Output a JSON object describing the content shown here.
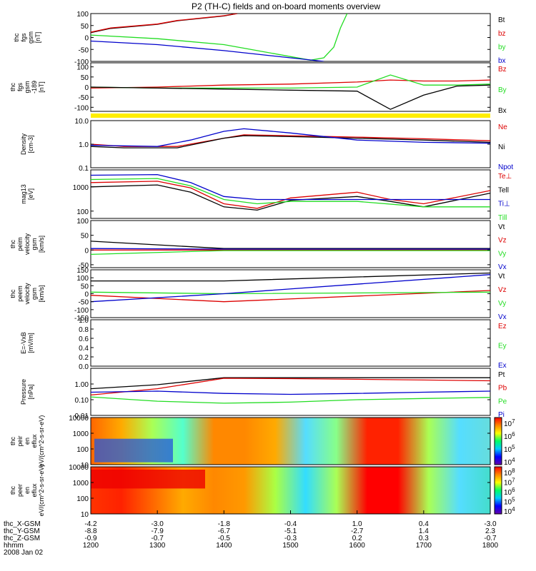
{
  "title": "P2 (TH-C) fields and on-board moments overview",
  "colors": {
    "black": "#000000",
    "red": "#dd0000",
    "green": "#22dd22",
    "blue": "#0000cc",
    "yellow": "#ffee00"
  },
  "chart_data": [
    {
      "type": "line",
      "ylabel": "thc fgs gsm [nT]",
      "ylim": [
        -100,
        100
      ],
      "yticks": [
        "100",
        "50",
        "0",
        "-50",
        "-100"
      ],
      "series": [
        {
          "name": "Bt",
          "color": "#000000",
          "x": [
            1200,
            1230,
            1300,
            1330,
            1400,
            1420
          ],
          "y": [
            20,
            38,
            55,
            70,
            90,
            100
          ]
        },
        {
          "name": "bz",
          "color": "#dd0000",
          "x": [
            1200,
            1230,
            1300,
            1330,
            1400,
            1420
          ],
          "y": [
            22,
            40,
            56,
            71,
            91,
            100
          ]
        },
        {
          "name": "by",
          "color": "#22dd22",
          "x": [
            1200,
            1300,
            1400,
            1450,
            1530,
            1550,
            1565,
            1575,
            1585
          ],
          "y": [
            10,
            -5,
            -30,
            -55,
            -95,
            -85,
            -40,
            40,
            100
          ]
        },
        {
          "name": "bx",
          "color": "#0000cc",
          "x": [
            1200,
            1300,
            1400,
            1500,
            1550
          ],
          "y": [
            -15,
            -30,
            -55,
            -85,
            -100
          ]
        }
      ]
    },
    {
      "type": "line",
      "ylabel": "thc fgs gsm -189 [nT]",
      "ylim": [
        -120,
        120
      ],
      "yticks": [
        "100",
        "50",
        "0",
        "-50",
        "-100"
      ],
      "series": [
        {
          "name": "Bz",
          "color": "#dd0000",
          "x": [
            1200,
            1300,
            1400,
            1500,
            1600,
            1650,
            1700,
            1750,
            1800
          ],
          "y": [
            -5,
            0,
            10,
            15,
            25,
            35,
            30,
            30,
            35
          ]
        },
        {
          "name": "By",
          "color": "#22dd22",
          "x": [
            1200,
            1300,
            1400,
            1500,
            1600,
            1650,
            1700,
            1750,
            1800
          ],
          "y": [
            0,
            -5,
            -5,
            -5,
            0,
            60,
            10,
            10,
            15
          ]
        },
        {
          "name": "Bx",
          "color": "#000000",
          "x": [
            1200,
            1300,
            1400,
            1500,
            1600,
            1650,
            1700,
            1750,
            1800
          ],
          "y": [
            0,
            -5,
            -10,
            -15,
            -20,
            -110,
            -40,
            5,
            10
          ]
        }
      ]
    },
    {
      "type": "line",
      "ylabel": "Density [cm-3]",
      "yscale": "log",
      "ylim": [
        0.1,
        10
      ],
      "yticks": [
        "10.0",
        "1.0",
        "0.1"
      ],
      "series": [
        {
          "name": "Ne",
          "color": "#dd0000",
          "x": [
            1200,
            1250,
            1330,
            1400,
            1430,
            1500,
            1600,
            1700,
            1800
          ],
          "y": [
            1.0,
            0.8,
            0.8,
            1.8,
            2.5,
            2.3,
            2.0,
            1.7,
            1.4
          ]
        },
        {
          "name": "Ni",
          "color": "#000000",
          "x": [
            1200,
            1250,
            1330,
            1400,
            1430,
            1500,
            1600,
            1700,
            1800
          ],
          "y": [
            0.8,
            0.7,
            0.7,
            1.8,
            2.3,
            2.1,
            1.8,
            1.5,
            1.2
          ]
        },
        {
          "name": "Npot",
          "color": "#0000cc",
          "x": [
            1200,
            1300,
            1350,
            1400,
            1430,
            1500,
            1600,
            1700,
            1800
          ],
          "y": [
            0.9,
            0.8,
            1.5,
            3.5,
            4.5,
            3.0,
            1.5,
            1.2,
            1.1
          ]
        }
      ]
    },
    {
      "type": "line",
      "ylabel": "mag13 [eV]",
      "yscale": "log",
      "ylim": [
        50,
        5000
      ],
      "yticks": [
        "1000",
        "100"
      ],
      "series": [
        {
          "name": "Te⊥",
          "color": "#dd0000",
          "x": [
            1200,
            1300,
            1350,
            1400,
            1450,
            1500,
            1600,
            1650,
            1700,
            1800
          ],
          "y": [
            1500,
            1700,
            900,
            200,
            130,
            350,
            600,
            300,
            200,
            700
          ]
        },
        {
          "name": "Tell",
          "color": "#000000",
          "x": [
            1200,
            1300,
            1350,
            1400,
            1450,
            1500,
            1600,
            1650,
            1700,
            1800
          ],
          "y": [
            1000,
            1200,
            600,
            150,
            110,
            280,
            400,
            250,
            150,
            550
          ]
        },
        {
          "name": "Ti⊥",
          "color": "#0000cc",
          "x": [
            1200,
            1300,
            1350,
            1400,
            1450,
            1500,
            1600,
            1700,
            1800
          ],
          "y": [
            3000,
            3200,
            1500,
            400,
            300,
            300,
            300,
            300,
            300
          ]
        },
        {
          "name": "Till",
          "color": "#22dd22",
          "x": [
            1200,
            1300,
            1350,
            1400,
            1450,
            1500,
            1600,
            1700,
            1800
          ],
          "y": [
            2000,
            2200,
            1100,
            300,
            200,
            250,
            250,
            150,
            150
          ]
        }
      ]
    },
    {
      "type": "line",
      "ylabel": "thc peim velocity gsm [km/s]",
      "ylim": [
        -60,
        100
      ],
      "yticks": [
        "100",
        "50",
        "0",
        "-50"
      ],
      "series": [
        {
          "name": "Vt",
          "color": "#000000",
          "x": [
            1200,
            1400,
            1800
          ],
          "y": [
            30,
            5,
            5
          ]
        },
        {
          "name": "Vz",
          "color": "#dd0000",
          "x": [
            1200,
            1400,
            1800
          ],
          "y": [
            0,
            0,
            0
          ]
        },
        {
          "name": "Vy",
          "color": "#22dd22",
          "x": [
            1200,
            1400,
            1800
          ],
          "y": [
            -15,
            -2,
            -2
          ]
        },
        {
          "name": "Vx",
          "color": "#0000cc",
          "x": [
            1200,
            1400,
            1800
          ],
          "y": [
            5,
            3,
            3
          ]
        }
      ]
    },
    {
      "type": "line",
      "ylabel": "thc peem velocity gsm [km/s]",
      "ylim": [
        -150,
        150
      ],
      "yticks": [
        "150",
        "100",
        "50",
        "0",
        "-50",
        "-100",
        "-150"
      ],
      "series": [
        {
          "name": "Vt",
          "color": "#000000",
          "x": [
            1200,
            1400,
            1800
          ],
          "y": [
            80,
            80,
            130
          ]
        },
        {
          "name": "Vz",
          "color": "#dd0000",
          "x": [
            1200,
            1400,
            1800
          ],
          "y": [
            -10,
            -50,
            20
          ]
        },
        {
          "name": "Vy",
          "color": "#22dd22",
          "x": [
            1200,
            1400,
            1800
          ],
          "y": [
            10,
            0,
            10
          ]
        },
        {
          "name": "Vx",
          "color": "#0000cc",
          "x": [
            1200,
            1400,
            1800
          ],
          "y": [
            -50,
            0,
            120
          ]
        }
      ]
    },
    {
      "type": "line",
      "ylabel": "E=-VxB [mV/m]",
      "ylim": [
        0,
        1
      ],
      "yticks": [
        "1.0",
        "0.8",
        "0.6",
        "0.4",
        "0.2",
        "0.0"
      ],
      "series": [
        {
          "name": "Ez",
          "color": "#dd0000",
          "x": [],
          "y": []
        },
        {
          "name": "Ey",
          "color": "#22dd22",
          "x": [],
          "y": []
        },
        {
          "name": "Ex",
          "color": "#0000cc",
          "x": [],
          "y": []
        }
      ]
    },
    {
      "type": "line",
      "ylabel": "Pressure [nPa]",
      "yscale": "log",
      "ylim": [
        0.01,
        10
      ],
      "yticks": [
        "1.00",
        "0.10",
        "0.01"
      ],
      "series": [
        {
          "name": "Pt",
          "color": "#000000",
          "x": [
            1200,
            1300,
            1400,
            1500,
            1600,
            1700,
            1800
          ],
          "y": [
            0.5,
            0.9,
            2.5,
            2.5,
            2.5,
            2.5,
            2.5
          ]
        },
        {
          "name": "Pb",
          "color": "#dd0000",
          "x": [
            1200,
            1300,
            1400,
            1500,
            1600,
            1700,
            1800
          ],
          "y": [
            0.2,
            0.5,
            2.3,
            2.2,
            2.0,
            1.8,
            1.6
          ]
        },
        {
          "name": "Pe",
          "color": "#22dd22",
          "x": [
            1200,
            1300,
            1400,
            1500,
            1600,
            1700,
            1800
          ],
          "y": [
            0.15,
            0.08,
            0.06,
            0.07,
            0.1,
            0.12,
            0.14
          ]
        },
        {
          "name": "Pi",
          "color": "#0000cc",
          "x": [
            1200,
            1300,
            1400,
            1500,
            1600,
            1700,
            1800
          ],
          "y": [
            0.3,
            0.35,
            0.25,
            0.22,
            0.25,
            0.3,
            0.35
          ]
        }
      ]
    },
    {
      "type": "heatmap",
      "ylabel": "thc peir en eflux eV/(cm^2-s-sr-eV)",
      "yscale": "log",
      "ylim": [
        10,
        10000
      ],
      "yticks": [
        "10000",
        "1000",
        "100",
        "10"
      ],
      "colorbar": [
        "10^7",
        "10^6",
        "10^5",
        "10^4"
      ]
    },
    {
      "type": "heatmap",
      "ylabel": "thc peer en eflux eV/(cm^2-s-sr-eV)",
      "yscale": "log",
      "ylim": [
        10,
        10000
      ],
      "yticks": [
        "10000",
        "1000",
        "100",
        "10"
      ],
      "colorbar": [
        "10^8",
        "10^7",
        "10^6",
        "10^5",
        "10^4"
      ]
    }
  ],
  "axis": {
    "xlim": [
      1200,
      1800
    ],
    "rows": [
      {
        "name": "thc_X-GSM",
        "values": [
          "-4.2",
          "-3.0",
          "-1.8",
          "-0.4",
          "1.0",
          "0.4",
          "-3.0"
        ]
      },
      {
        "name": "thc_Y-GSM",
        "values": [
          "-8.8",
          "-7.9",
          "-6.7",
          "-5.1",
          "-2.7",
          "1.4",
          "2.3"
        ]
      },
      {
        "name": "thc_Z-GSM",
        "values": [
          "-0.9",
          "-0.7",
          "-0.5",
          "-0.3",
          "0.2",
          "0.3",
          "-0.7"
        ]
      },
      {
        "name": "hhmm",
        "values": [
          "1200",
          "1300",
          "1400",
          "1500",
          "1600",
          "1700",
          "1800"
        ]
      }
    ],
    "date": "2008 Jan 02"
  }
}
